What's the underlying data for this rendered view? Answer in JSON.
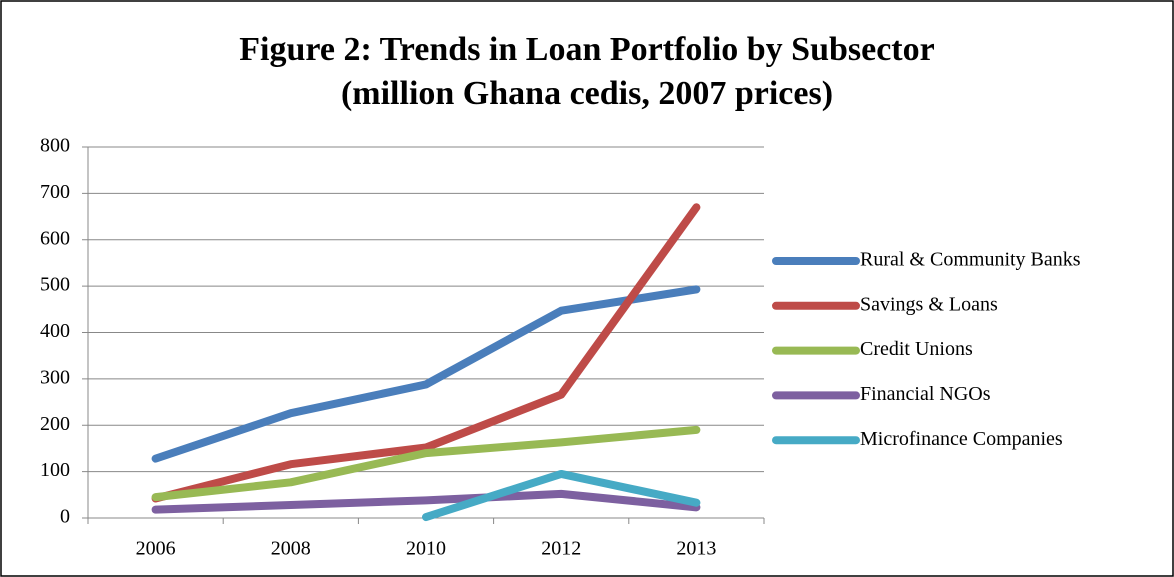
{
  "chart_data": {
    "type": "line",
    "title": [
      "Figure 2: Trends in Loan Portfolio by Subsector",
      "(million Ghana cedis, 2007 prices)"
    ],
    "categories": [
      "2006",
      "2008",
      "2010",
      "2012",
      "2013"
    ],
    "series": [
      {
        "name": "Rural & Community Banks",
        "color": "#4a7ebb",
        "values": [
          128,
          226,
          288,
          447,
          493
        ]
      },
      {
        "name": "Savings & Loans",
        "color": "#be4b48",
        "values": [
          42,
          116,
          152,
          266,
          670
        ]
      },
      {
        "name": "Credit Unions",
        "color": "#98b954",
        "values": [
          45,
          77,
          140,
          163,
          190
        ]
      },
      {
        "name": "Financial NGOs",
        "color": "#7d60a0",
        "values": [
          18,
          28,
          38,
          52,
          23
        ]
      },
      {
        "name": "Microfinance Companies",
        "color": "#46aac5",
        "values": [
          null,
          null,
          2,
          95,
          33
        ]
      }
    ],
    "ylim": [
      0,
      800
    ],
    "yticks": [
      0,
      100,
      200,
      300,
      400,
      500,
      600,
      700,
      800
    ],
    "grid": true,
    "legend": "right"
  }
}
